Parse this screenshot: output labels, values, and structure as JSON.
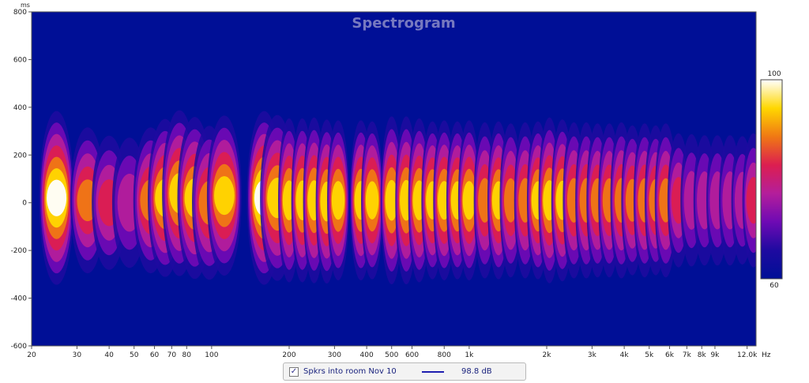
{
  "chart_data": {
    "type": "heatmap",
    "title": "Spectrogram",
    "y_unit": "ms",
    "x_unit": "Hz",
    "x_scale": "log",
    "xlim": [
      20,
      13000
    ],
    "ylim": [
      -600,
      800
    ],
    "x_ticks": [
      {
        "v": 20,
        "label": "20"
      },
      {
        "v": 30,
        "label": "30"
      },
      {
        "v": 40,
        "label": "40"
      },
      {
        "v": 50,
        "label": "50"
      },
      {
        "v": 60,
        "label": "60"
      },
      {
        "v": 70,
        "label": "70"
      },
      {
        "v": 80,
        "label": "80"
      },
      {
        "v": 100,
        "label": "100"
      },
      {
        "v": 200,
        "label": "200"
      },
      {
        "v": 300,
        "label": "300"
      },
      {
        "v": 400,
        "label": "400"
      },
      {
        "v": 500,
        "label": "500"
      },
      {
        "v": 600,
        "label": "600"
      },
      {
        "v": 800,
        "label": "800"
      },
      {
        "v": 1000,
        "label": "1k"
      },
      {
        "v": 2000,
        "label": "2k"
      },
      {
        "v": 3000,
        "label": "3k"
      },
      {
        "v": 4000,
        "label": "4k"
      },
      {
        "v": 5000,
        "label": "5k"
      },
      {
        "v": 6000,
        "label": "6k"
      },
      {
        "v": 7000,
        "label": "7k"
      },
      {
        "v": 8000,
        "label": "8k"
      },
      {
        "v": 9000,
        "label": "9k"
      },
      {
        "v": 12000,
        "label": "12.0k"
      }
    ],
    "y_ticks": [
      800,
      600,
      400,
      200,
      0,
      -200,
      -400,
      -600
    ],
    "colorbar": {
      "max": 100,
      "min": 60,
      "max_label": "100",
      "min_label": "60"
    },
    "blobs": [
      {
        "f": 25,
        "t": 20,
        "level": 100
      },
      {
        "f": 33,
        "t": 10,
        "level": 86
      },
      {
        "f": 40,
        "t": 0,
        "level": 80
      },
      {
        "f": 48,
        "t": 0,
        "level": 78
      },
      {
        "f": 58,
        "t": 10,
        "level": 86
      },
      {
        "f": 66,
        "t": 20,
        "level": 92
      },
      {
        "f": 75,
        "t": 40,
        "level": 96
      },
      {
        "f": 86,
        "t": 20,
        "level": 94
      },
      {
        "f": 98,
        "t": 0,
        "level": 90
      },
      {
        "f": 112,
        "t": 30,
        "level": 93
      },
      {
        "f": 160,
        "t": 20,
        "level": 100
      },
      {
        "f": 180,
        "t": 20,
        "level": 96
      },
      {
        "f": 200,
        "t": 10,
        "level": 95
      },
      {
        "f": 225,
        "t": 10,
        "level": 95
      },
      {
        "f": 250,
        "t": 10,
        "level": 96
      },
      {
        "f": 280,
        "t": 5,
        "level": 95
      },
      {
        "f": 310,
        "t": 10,
        "level": 93
      },
      {
        "f": 380,
        "t": 10,
        "level": 93
      },
      {
        "f": 420,
        "t": 10,
        "level": 92
      },
      {
        "f": 500,
        "t": 10,
        "level": 97
      },
      {
        "f": 570,
        "t": 10,
        "level": 97
      },
      {
        "f": 640,
        "t": 10,
        "level": 95
      },
      {
        "f": 720,
        "t": 10,
        "level": 92
      },
      {
        "f": 800,
        "t": 10,
        "level": 93
      },
      {
        "f": 900,
        "t": 10,
        "level": 92
      },
      {
        "f": 1000,
        "t": 10,
        "level": 93
      },
      {
        "f": 1150,
        "t": 10,
        "level": 91
      },
      {
        "f": 1300,
        "t": 10,
        "level": 92
      },
      {
        "f": 1450,
        "t": 10,
        "level": 90
      },
      {
        "f": 1650,
        "t": 10,
        "level": 91
      },
      {
        "f": 1850,
        "t": 10,
        "level": 92
      },
      {
        "f": 2050,
        "t": 10,
        "level": 96
      },
      {
        "f": 2300,
        "t": 10,
        "level": 94
      },
      {
        "f": 2550,
        "t": 10,
        "level": 91
      },
      {
        "f": 2850,
        "t": 10,
        "level": 91
      },
      {
        "f": 3150,
        "t": 10,
        "level": 90
      },
      {
        "f": 3500,
        "t": 10,
        "level": 90
      },
      {
        "f": 3900,
        "t": 10,
        "level": 91
      },
      {
        "f": 4300,
        "t": 10,
        "level": 88
      },
      {
        "f": 4800,
        "t": 10,
        "level": 90
      },
      {
        "f": 5300,
        "t": 10,
        "level": 88
      },
      {
        "f": 5800,
        "t": 10,
        "level": 90
      },
      {
        "f": 6500,
        "t": 10,
        "level": 80
      },
      {
        "f": 7300,
        "t": 10,
        "level": 79
      },
      {
        "f": 8200,
        "t": 10,
        "level": 78
      },
      {
        "f": 9200,
        "t": 10,
        "level": 78
      },
      {
        "f": 10300,
        "t": 10,
        "level": 78
      },
      {
        "f": 11500,
        "t": 10,
        "level": 77
      },
      {
        "f": 12700,
        "t": 10,
        "level": 80
      }
    ],
    "colors": {
      "background": "#000f96",
      "scale": [
        "#000f96",
        "#1e0aa0",
        "#6e0ab4",
        "#b41e9b",
        "#dc1e50",
        "#f07814",
        "#ffd700",
        "#ffffff"
      ]
    },
    "legend": {
      "series_name": "Spkrs into room Nov 10",
      "value": "98.8 dB",
      "checked": "✓",
      "line_color": "#1f1fb0"
    }
  }
}
